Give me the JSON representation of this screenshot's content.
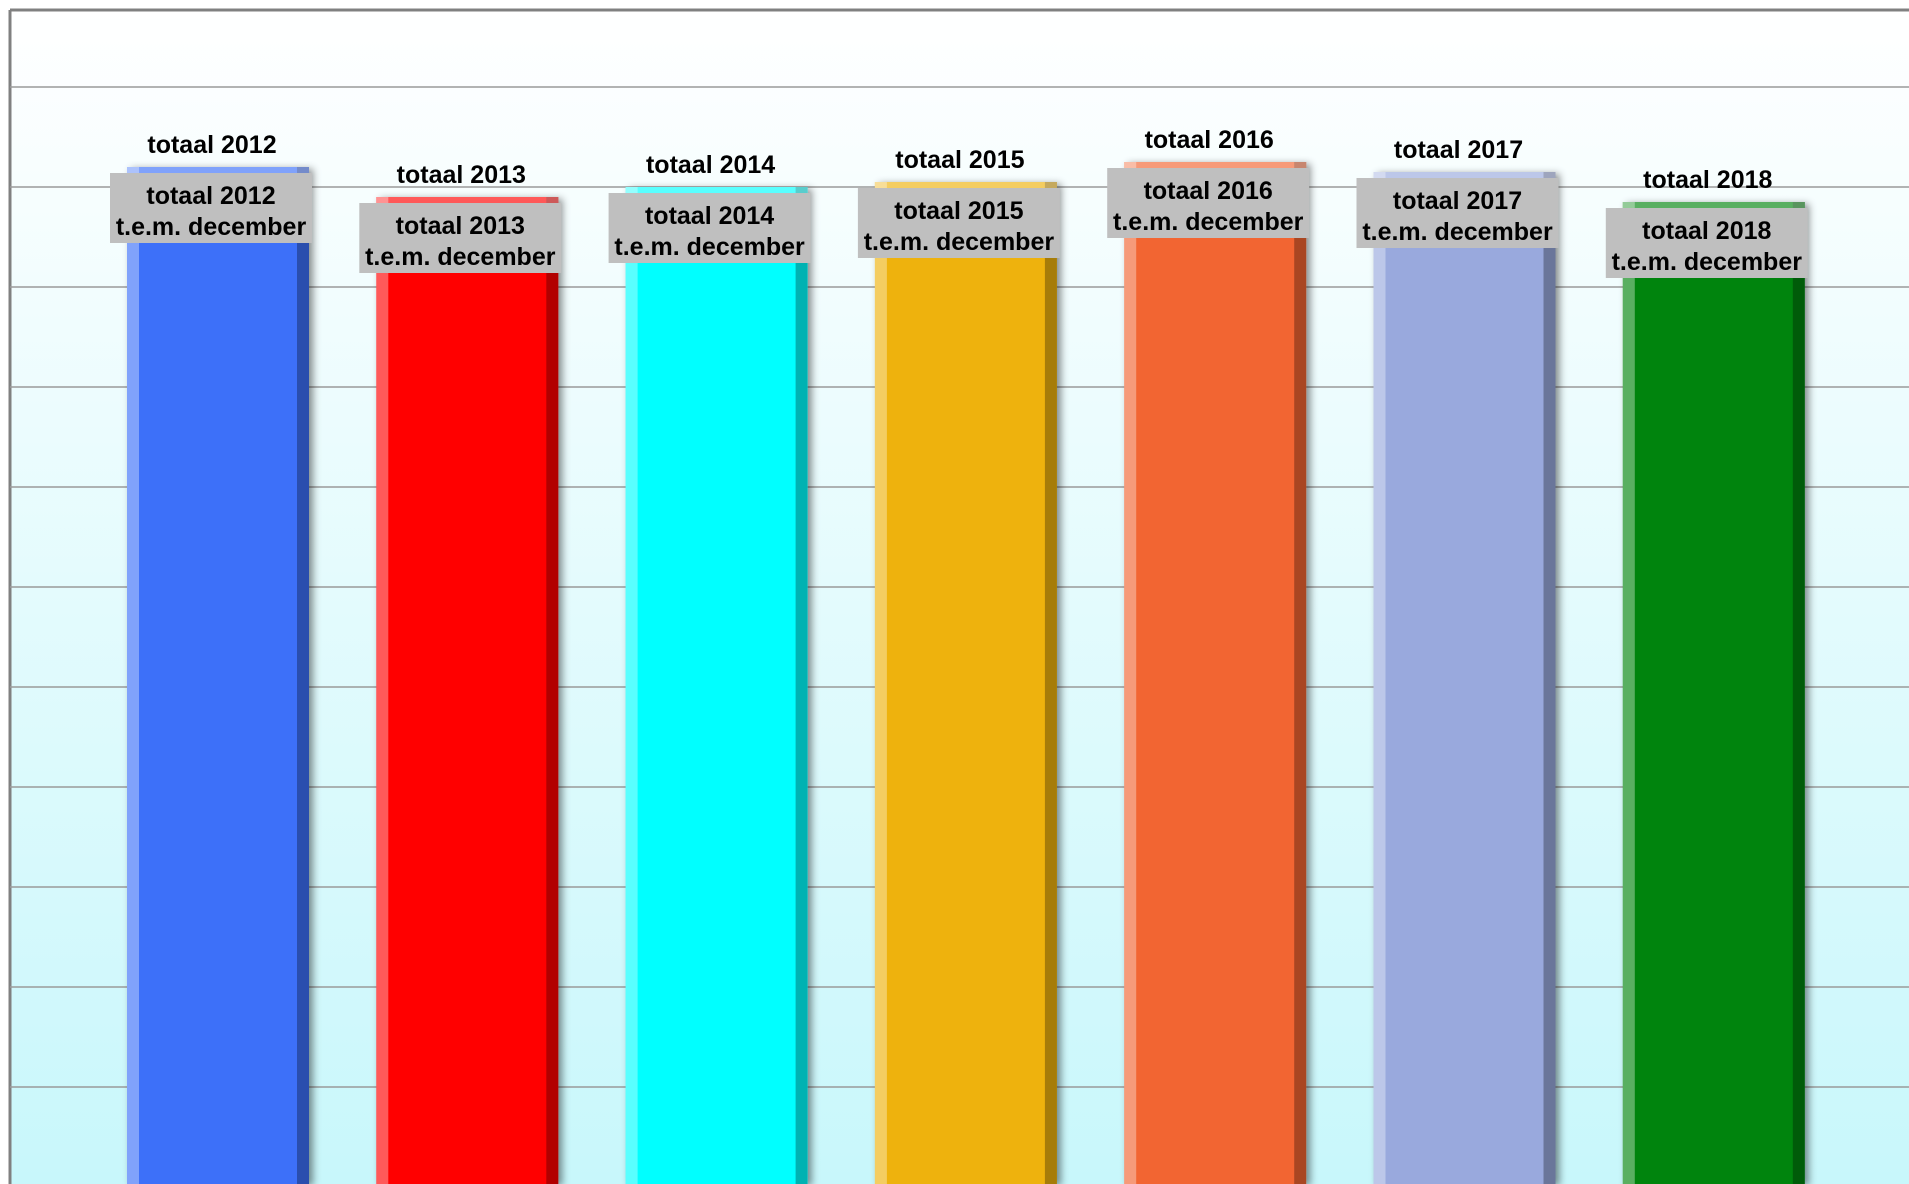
{
  "chart_data": {
    "type": "bar",
    "categories": [
      "2012",
      "2013",
      "2014",
      "2015",
      "2016",
      "2017",
      "2018"
    ],
    "values": [
      1020,
      990,
      1000,
      1005,
      1025,
      1015,
      985
    ],
    "colors": [
      "#3d6ff9",
      "#ff0506",
      "#05ffff",
      "#eeb208",
      "#f26530",
      "#99a9dd",
      "#03840c"
    ],
    "top_labels": [
      "totaal 2012",
      "totaal 2013",
      "totaal 2014",
      "totaal 2015",
      "totaal 2016",
      "totaal 2017",
      "totaal 2018"
    ],
    "data_labels": [
      {
        "line1": "totaal 2012",
        "line2": "t.e.m. december"
      },
      {
        "line1": "totaal 2013",
        "line2": "t.e.m. december"
      },
      {
        "line1": "totaal 2014",
        "line2": "t.e.m. december"
      },
      {
        "line1": "totaal 2015",
        "line2": "t.e.m. december"
      },
      {
        "line1": "totaal 2016",
        "line2": "t.e.m. december"
      },
      {
        "line1": "totaal 2017",
        "line2": "t.e.m. december"
      },
      {
        "line1": "totaal 2018",
        "line2": "t.e.m. december"
      }
    ],
    "title": "",
    "xlabel": "",
    "ylabel": "",
    "ylim": [
      0,
      1100
    ],
    "grid": true,
    "legend": "none"
  }
}
